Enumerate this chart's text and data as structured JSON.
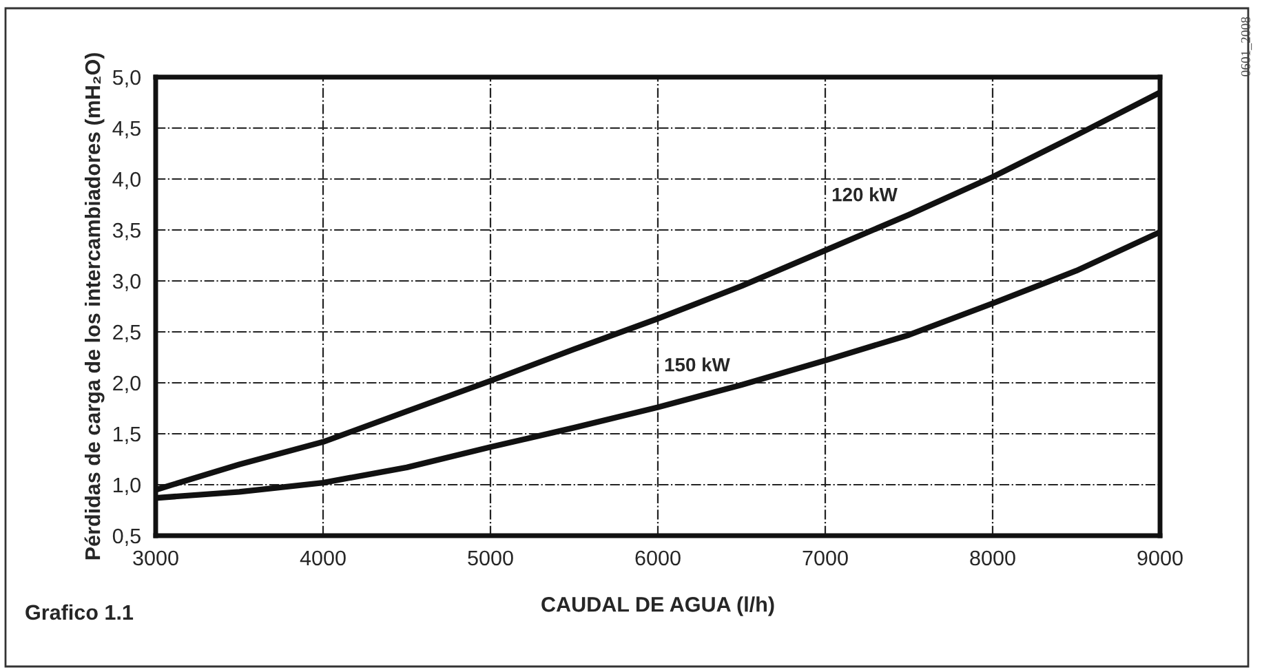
{
  "chart_data": {
    "type": "line",
    "xlabel": "CAUDAL DE AGUA (l/h)",
    "ylabel": "Pérdidas de carga de los intercambiadores (mH₂O)",
    "x": [
      3000,
      3500,
      4000,
      4500,
      5000,
      5500,
      6000,
      6500,
      7000,
      7500,
      8000,
      8500,
      9000
    ],
    "series": [
      {
        "name": "120 kW",
        "color": "#111111",
        "values": [
          0.95,
          1.2,
          1.42,
          1.72,
          2.02,
          2.33,
          2.63,
          2.95,
          3.3,
          3.65,
          4.02,
          4.43,
          4.85
        ]
      },
      {
        "name": "150 kW",
        "color": "#111111",
        "values": [
          0.87,
          0.93,
          1.02,
          1.17,
          1.37,
          1.56,
          1.76,
          1.98,
          2.22,
          2.47,
          2.78,
          3.1,
          3.48
        ]
      }
    ],
    "xlim": [
      3000,
      9000
    ],
    "xticks": [
      3000,
      4000,
      5000,
      6000,
      7000,
      8000,
      9000
    ],
    "ylim": [
      0.5,
      5.0
    ],
    "yticks": [
      {
        "value": 0.5,
        "label": "0,5"
      },
      {
        "value": 1.0,
        "label": "1,0"
      },
      {
        "value": 1.5,
        "label": "1,5"
      },
      {
        "value": 2.0,
        "label": "2,0"
      },
      {
        "value": 2.5,
        "label": "2,5"
      },
      {
        "value": 3.0,
        "label": "3,0"
      },
      {
        "value": 3.5,
        "label": "3,5"
      },
      {
        "value": 4.0,
        "label": "4,0"
      },
      {
        "value": 4.5,
        "label": "4,5"
      },
      {
        "value": 5.0,
        "label": "5,0"
      }
    ],
    "grid": true,
    "marker": "none",
    "line_style": "solid",
    "annotations": [
      "Grafico 1.1",
      "0601_2008"
    ]
  }
}
